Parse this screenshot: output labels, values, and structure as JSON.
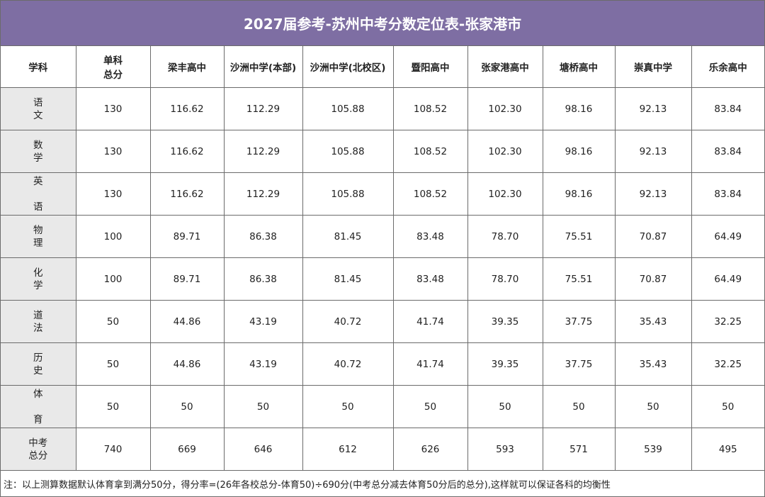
{
  "title": "2027届参考-苏州中考分数定位表-张家港市",
  "headers": [
    "学科",
    "单科",
    "总分",
    "梁丰高中",
    "沙洲中学(本部)",
    "沙洲中学(北校区)",
    "暨阳高中",
    "张家港高中",
    "塘桥高中",
    "崇真中学",
    "乐余高中"
  ],
  "rows": [
    {
      "s1": "语",
      "s2": "文",
      "wide": false,
      "values": [
        "130",
        "116.62",
        "112.29",
        "105.88",
        "108.52",
        "102.30",
        "98.16",
        "92.13",
        "83.84"
      ]
    },
    {
      "s1": "数",
      "s2": "学",
      "wide": false,
      "values": [
        "130",
        "116.62",
        "112.29",
        "105.88",
        "108.52",
        "102.30",
        "98.16",
        "92.13",
        "83.84"
      ]
    },
    {
      "s1": "英",
      "s2": "语",
      "wide": true,
      "values": [
        "130",
        "116.62",
        "112.29",
        "105.88",
        "108.52",
        "102.30",
        "98.16",
        "92.13",
        "83.84"
      ]
    },
    {
      "s1": "物",
      "s2": "理",
      "wide": false,
      "values": [
        "100",
        "89.71",
        "86.38",
        "81.45",
        "83.48",
        "78.70",
        "75.51",
        "70.87",
        "64.49"
      ]
    },
    {
      "s1": "化",
      "s2": "学",
      "wide": false,
      "values": [
        "100",
        "89.71",
        "86.38",
        "81.45",
        "83.48",
        "78.70",
        "75.51",
        "70.87",
        "64.49"
      ]
    },
    {
      "s1": "道",
      "s2": "法",
      "wide": false,
      "values": [
        "50",
        "44.86",
        "43.19",
        "40.72",
        "41.74",
        "39.35",
        "37.75",
        "35.43",
        "32.25"
      ]
    },
    {
      "s1": "历",
      "s2": "史",
      "wide": false,
      "values": [
        "50",
        "44.86",
        "43.19",
        "40.72",
        "41.74",
        "39.35",
        "37.75",
        "35.43",
        "32.25"
      ]
    },
    {
      "s1": "体",
      "s2": "育",
      "wide": true,
      "values": [
        "50",
        "50",
        "50",
        "50",
        "50",
        "50",
        "50",
        "50",
        "50"
      ]
    },
    {
      "s1": "中考",
      "s2": "总分",
      "wide": false,
      "values": [
        "740",
        "669",
        "646",
        "612",
        "626",
        "593",
        "571",
        "539",
        "495"
      ]
    }
  ],
  "note": "注：以上测算数据默认体育拿到满分50分，得分率=(26年各校总分-体育50)÷690分(中考总分减去体育50分后的总分),这样就可以保证各科的均衡性"
}
